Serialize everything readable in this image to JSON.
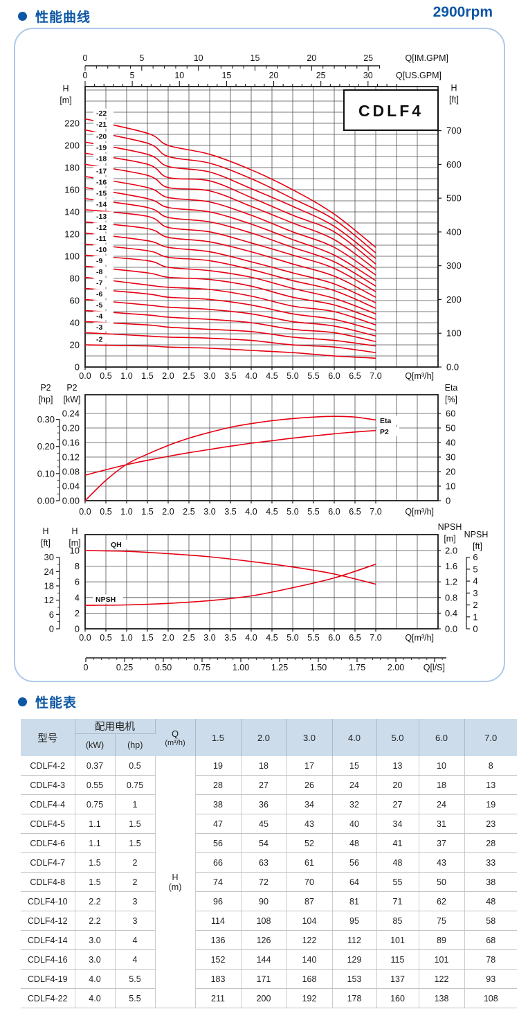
{
  "header": {
    "title": "性能曲线",
    "rpm": "2900rpm"
  },
  "table_section": {
    "title": "性能表"
  },
  "colors": {
    "accent_blue": "#0d57a5",
    "curve_red": "#e60012",
    "grid": "#4f4f4f",
    "axis": "#1a1a1a",
    "panel_border": "#adc9e9",
    "table_header_bg": "#ccdcea"
  },
  "chart_data": [
    {
      "type": "line",
      "title": "CDLF4",
      "q_m3h": [
        0,
        1.5,
        2,
        3,
        4,
        5,
        6,
        7
      ],
      "series": [
        {
          "name": "-2",
          "values": [
            20,
            19,
            18,
            17,
            15,
            13,
            10,
            8
          ]
        },
        {
          "name": "-3",
          "values": [
            31,
            28,
            27,
            26,
            24,
            20,
            18,
            13
          ]
        },
        {
          "name": "-4",
          "values": [
            41,
            38,
            36,
            34,
            32,
            27,
            24,
            19
          ]
        },
        {
          "name": "-5",
          "values": [
            51,
            47,
            45,
            43,
            40,
            34,
            31,
            23
          ]
        },
        {
          "name": "-6",
          "values": [
            61,
            56,
            54,
            52,
            48,
            41,
            37,
            28
          ]
        },
        {
          "name": "-7",
          "values": [
            71,
            66,
            63,
            61,
            56,
            48,
            43,
            33
          ]
        },
        {
          "name": "-8",
          "values": [
            81,
            74,
            72,
            70,
            64,
            55,
            50,
            38
          ]
        },
        {
          "name": "-9",
          "values": [
            91,
            85,
            81,
            79,
            73,
            63,
            56,
            43
          ]
        },
        {
          "name": "-10",
          "values": [
            101,
            96,
            90,
            87,
            81,
            71,
            62,
            48
          ]
        },
        {
          "name": "-11",
          "values": [
            111,
            105,
            99,
            96,
            88,
            78,
            69,
            53
          ]
        },
        {
          "name": "-12",
          "values": [
            121,
            114,
            108,
            104,
            95,
            85,
            75,
            58
          ]
        },
        {
          "name": "-13",
          "values": [
            131,
            125,
            117,
            113,
            104,
            93,
            82,
            63
          ]
        },
        {
          "name": "-14",
          "values": [
            142,
            136,
            126,
            122,
            112,
            101,
            89,
            68
          ]
        },
        {
          "name": "-15",
          "values": [
            152,
            144,
            135,
            131,
            121,
            108,
            95,
            73
          ]
        },
        {
          "name": "-16",
          "values": [
            162,
            152,
            144,
            140,
            129,
            115,
            101,
            78
          ]
        },
        {
          "name": "-17",
          "values": [
            172,
            162,
            153,
            149,
            137,
            122,
            108,
            83
          ]
        },
        {
          "name": "-18",
          "values": [
            183,
            173,
            162,
            159,
            145,
            130,
            115,
            88
          ]
        },
        {
          "name": "-19",
          "values": [
            193,
            183,
            171,
            168,
            153,
            137,
            122,
            93
          ]
        },
        {
          "name": "-20",
          "values": [
            203,
            192,
            181,
            176,
            161,
            145,
            127,
            98
          ]
        },
        {
          "name": "-21",
          "values": [
            214,
            202,
            190,
            184,
            170,
            152,
            133,
            103
          ]
        },
        {
          "name": "-22",
          "values": [
            224,
            211,
            200,
            192,
            178,
            160,
            138,
            108
          ]
        }
      ],
      "axes": {
        "top_ruler": {
          "label": "Q[IM.GPM]",
          "ticks": [
            0,
            5,
            10,
            15,
            20,
            25
          ]
        },
        "top": {
          "label": "Q[US.GPM]",
          "ticks": [
            0,
            5,
            10,
            15,
            20,
            25,
            30
          ]
        },
        "left": {
          "label": [
            "H",
            "[m]"
          ],
          "ticks": [
            0,
            20,
            40,
            60,
            80,
            100,
            120,
            140,
            160,
            180,
            200,
            220
          ],
          "grid_step": 10,
          "grid_max": 250
        },
        "right": {
          "label": [
            "H",
            "[ft]"
          ],
          "ticks": [
            "700",
            "600",
            "500",
            "400",
            "300",
            "200",
            "100",
            "0.0"
          ]
        },
        "bottom": {
          "label": "Q[m³/h]",
          "tick_min": 0,
          "tick_max": 7,
          "tick_step": 0.5
        }
      }
    },
    {
      "type": "line",
      "x": [
        0,
        0.5,
        1,
        1.5,
        2,
        2.5,
        3,
        3.5,
        4,
        4.5,
        5,
        5.5,
        6,
        6.5,
        7
      ],
      "series": [
        {
          "name": "Eta",
          "unit": "%",
          "values": [
            0,
            14,
            25,
            32,
            38,
            43,
            47,
            50.5,
            53,
            55,
            56.5,
            57.5,
            58,
            57.5,
            55.5
          ]
        },
        {
          "name": "P2",
          "unit": "kW",
          "values": [
            0.07,
            0.085,
            0.099,
            0.111,
            0.122,
            0.132,
            0.141,
            0.15,
            0.158,
            0.165,
            0.172,
            0.178,
            0.184,
            0.189,
            0.193
          ]
        }
      ],
      "axes": {
        "outer_left": {
          "label": [
            "P2",
            "[hp]"
          ],
          "ticks": [
            "0.30",
            "0.20",
            "0.10",
            "0.00"
          ]
        },
        "left": {
          "label": [
            "P2",
            "[kW]"
          ],
          "ticks": [
            "0.24",
            "0.20",
            "0.16",
            "0.12",
            "0.08",
            "0.04",
            "0.00"
          ]
        },
        "right": {
          "label": [
            "Eta",
            "[%]"
          ],
          "ticks": [
            60,
            50,
            40,
            30,
            20,
            10,
            0
          ]
        },
        "bottom": {
          "label": "Q[m³/h]",
          "tick_min": 0,
          "tick_max": 7,
          "tick_step": 0.5
        }
      }
    },
    {
      "type": "line",
      "x": [
        0,
        1,
        2,
        3,
        4,
        5,
        6,
        7
      ],
      "series": [
        {
          "name": "QH",
          "unit": "m",
          "values": [
            10,
            9.9,
            9.6,
            9.2,
            8.6,
            7.9,
            7.0,
            5.7
          ]
        },
        {
          "name": "NPSH",
          "unit": "NPSH m",
          "values": [
            0.6,
            0.61,
            0.65,
            0.72,
            0.84,
            1.05,
            1.3,
            1.65
          ]
        }
      ],
      "axes": {
        "outer_left": {
          "label": [
            "H",
            "[ft]"
          ],
          "ticks": [
            30,
            24,
            18,
            12,
            6,
            0
          ]
        },
        "left": {
          "label": [
            "H",
            "[m]"
          ],
          "ticks": [
            10,
            8,
            6,
            4,
            2,
            0
          ]
        },
        "right": {
          "label": [
            "NPSH",
            "[m]"
          ],
          "ticks": [
            "2.0",
            "1.6",
            "1.2",
            "0.8",
            "0.4",
            "0.0"
          ]
        },
        "outer_right": {
          "label": [
            "NPSH",
            "[ft]"
          ],
          "ticks": [
            6,
            5,
            4,
            3,
            2,
            1,
            0
          ]
        },
        "bottom": {
          "label": "Q[m³/h]",
          "tick_min": 0,
          "tick_max": 7,
          "tick_step": 0.5
        },
        "bottom_ruler": {
          "label": "Q[l/S]",
          "ticks": [
            "0",
            "0.25",
            "0.50",
            "0.75",
            "1.00",
            "1.25",
            "1.50",
            "1.75",
            "2.00"
          ]
        }
      }
    }
  ],
  "table": {
    "header": {
      "model": "型号",
      "motor": "配用电机",
      "kw": "(kW)",
      "hp": "(hp)",
      "q_title": "Q",
      "q_unit": "(m³/h)",
      "flows": [
        "1.5",
        "2.0",
        "3.0",
        "4.0",
        "5.0",
        "6.0",
        "7.0"
      ],
      "body_label_title": "H",
      "body_label_unit": "(m)"
    },
    "rows": [
      {
        "model": "CDLF4-2",
        "kw": "0.37",
        "hp": "0.5",
        "heads": [
          19,
          18,
          17,
          15,
          13,
          10,
          8
        ]
      },
      {
        "model": "CDLF4-3",
        "kw": "0.55",
        "hp": "0.75",
        "heads": [
          28,
          27,
          26,
          24,
          20,
          18,
          13
        ]
      },
      {
        "model": "CDLF4-4",
        "kw": "0.75",
        "hp": "1",
        "heads": [
          38,
          36,
          34,
          32,
          27,
          24,
          19
        ]
      },
      {
        "model": "CDLF4-5",
        "kw": "1.1",
        "hp": "1.5",
        "heads": [
          47,
          45,
          43,
          40,
          34,
          31,
          23
        ]
      },
      {
        "model": "CDLF4-6",
        "kw": "1.1",
        "hp": "1.5",
        "heads": [
          56,
          54,
          52,
          48,
          41,
          37,
          28
        ]
      },
      {
        "model": "CDLF4-7",
        "kw": "1.5",
        "hp": "2",
        "heads": [
          66,
          63,
          61,
          56,
          48,
          43,
          33
        ]
      },
      {
        "model": "CDLF4-8",
        "kw": "1.5",
        "hp": "2",
        "heads": [
          74,
          72,
          70,
          64,
          55,
          50,
          38
        ]
      },
      {
        "model": "CDLF4-10",
        "kw": "2.2",
        "hp": "3",
        "heads": [
          96,
          90,
          87,
          81,
          71,
          62,
          48
        ]
      },
      {
        "model": "CDLF4-12",
        "kw": "2.2",
        "hp": "3",
        "heads": [
          114,
          108,
          104,
          95,
          85,
          75,
          58
        ]
      },
      {
        "model": "CDLF4-14",
        "kw": "3.0",
        "hp": "4",
        "heads": [
          136,
          126,
          122,
          112,
          101,
          89,
          68
        ]
      },
      {
        "model": "CDLF4-16",
        "kw": "3.0",
        "hp": "4",
        "heads": [
          152,
          144,
          140,
          129,
          115,
          101,
          78
        ]
      },
      {
        "model": "CDLF4-19",
        "kw": "4.0",
        "hp": "5.5",
        "heads": [
          183,
          171,
          168,
          153,
          137,
          122,
          93
        ]
      },
      {
        "model": "CDLF4-22",
        "kw": "4.0",
        "hp": "5.5",
        "heads": [
          211,
          200,
          192,
          178,
          160,
          138,
          108
        ]
      }
    ]
  }
}
